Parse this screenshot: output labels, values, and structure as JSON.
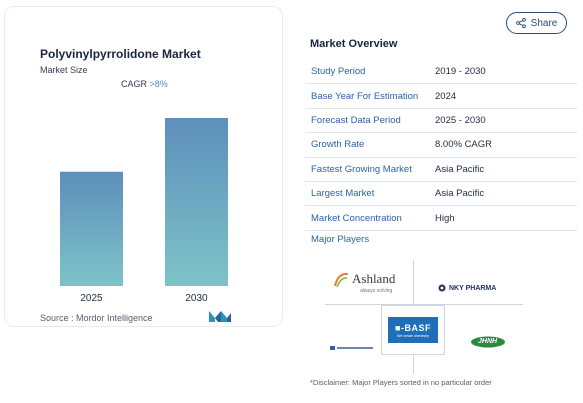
{
  "card": {
    "title": "Polyvinylpyrrolidone Market",
    "subtitle": "Market Size",
    "cagr_label": "CAGR",
    "cagr_value": ">8%",
    "source": "Source :  Mordor Intelligence"
  },
  "chart_data": {
    "type": "bar",
    "categories": [
      "2025",
      "2030"
    ],
    "values": [
      1.0,
      1.47
    ],
    "title": "Polyvinylpyrrolidone Market",
    "subtitle": "Market Size",
    "xlabel": "",
    "ylabel": "",
    "grid": false,
    "legend": "none",
    "colors": {
      "bar_top": "#5d8fbb",
      "bar_bottom": "#7ec3c8"
    }
  },
  "share": {
    "label": "Share"
  },
  "overview": {
    "title": "Market Overview",
    "rows": [
      {
        "key": "Study Period",
        "value": "2019 - 2030"
      },
      {
        "key": "Base Year For Estimation",
        "value": "2024"
      },
      {
        "key": "Forecast Data Period",
        "value": "2025 - 2030"
      },
      {
        "key": "Growth Rate",
        "value": "8.00% CAGR"
      },
      {
        "key": "Fastest Growing Market",
        "value": "Asia Pacific"
      },
      {
        "key": "Largest Market",
        "value": "Asia Pacific"
      },
      {
        "key": "Market Concentration",
        "value": "High"
      }
    ]
  },
  "players": {
    "title": "Major Players",
    "ashland": {
      "name": "Ashland",
      "tagline": "always solving"
    },
    "nky": {
      "name": "NKY PHARMA"
    },
    "basf": {
      "name": "BASF",
      "tagline": "We create chemistry"
    },
    "jhnh": {
      "name": "JHNH"
    }
  },
  "disclaimer": "*Disclaimer: Major Players sorted in no particular order",
  "colors": {
    "link": "#2a63a8",
    "heading": "#1a2440",
    "border": "#dfe4ea"
  }
}
